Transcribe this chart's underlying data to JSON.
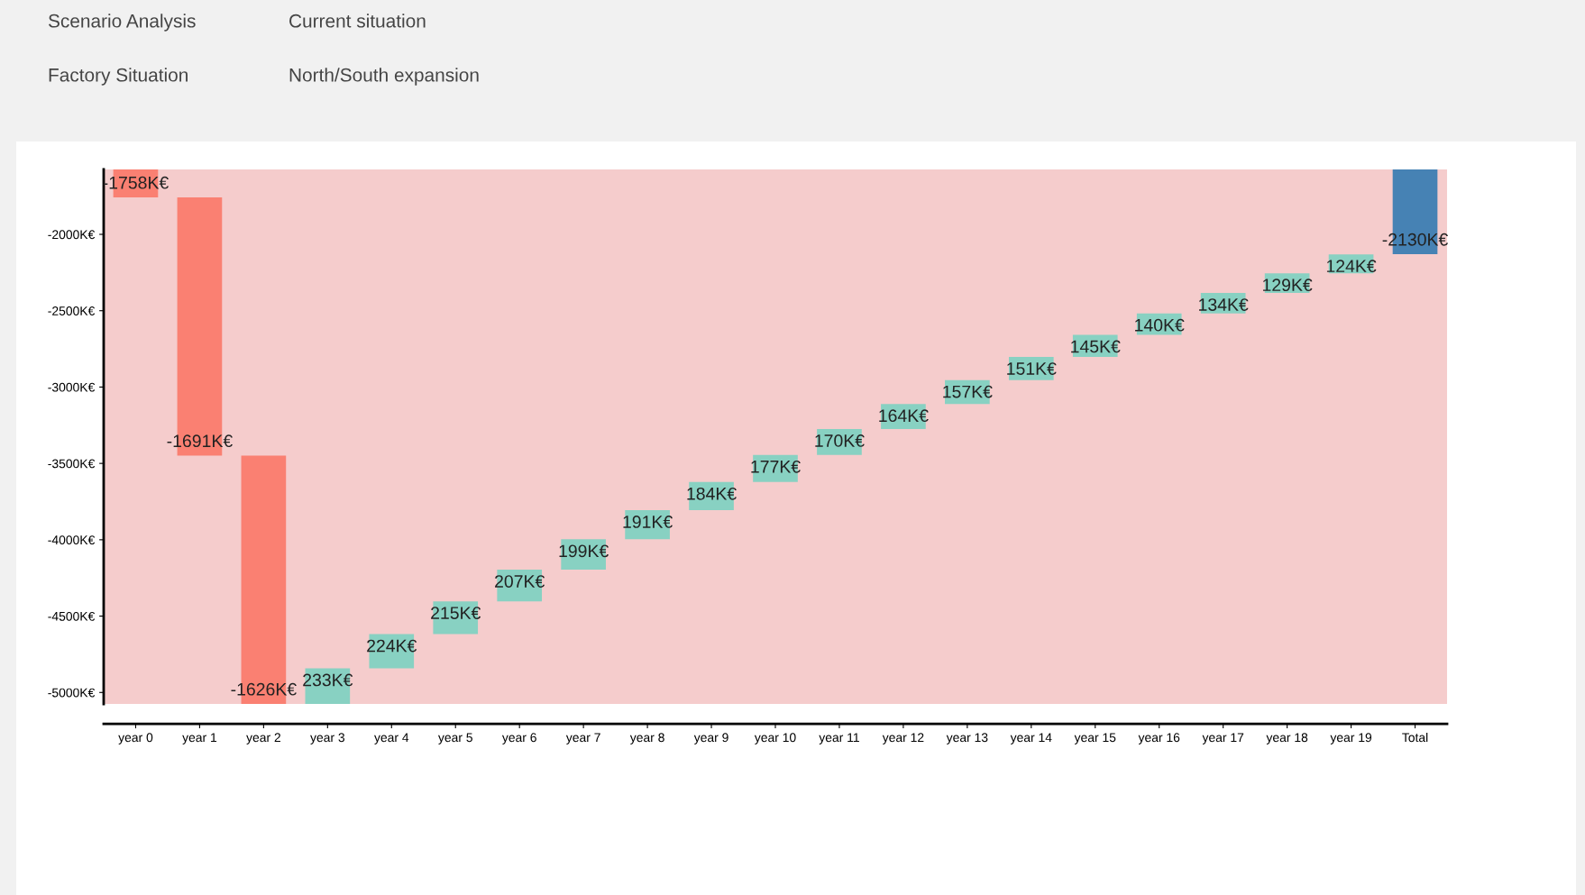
{
  "chart_data": {
    "type": "bar",
    "categories": [
      "year 0",
      "year 1",
      "year 2",
      "year 3",
      "year 4",
      "year 5",
      "year 6",
      "year 7",
      "year 8",
      "year 9",
      "year 10",
      "year 11",
      "year 12",
      "year 13",
      "year 14",
      "year 15",
      "year 16",
      "year 17",
      "year 18",
      "year 19",
      "Total"
    ],
    "values": [
      -1758,
      -1691,
      -1626,
      233,
      224,
      215,
      207,
      199,
      191,
      184,
      177,
      170,
      164,
      157,
      151,
      145,
      140,
      134,
      129,
      124,
      -2130
    ],
    "base": [
      0,
      -1758,
      -3449,
      -5075,
      -4842,
      -4618,
      -4403,
      -4196,
      -3997,
      -3806,
      -3622,
      -3445,
      -3275,
      -3111,
      -2954,
      -2803,
      -2658,
      -2518,
      -2384,
      -2255,
      0
    ],
    "colors": [
      "#fa8072",
      "#fa8072",
      "#fa8072",
      "#88d1c2",
      "#88d1c2",
      "#88d1c2",
      "#88d1c2",
      "#88d1c2",
      "#88d1c2",
      "#88d1c2",
      "#88d1c2",
      "#88d1c2",
      "#88d1c2",
      "#88d1c2",
      "#88d1c2",
      "#88d1c2",
      "#88d1c2",
      "#88d1c2",
      "#88d1c2",
      "#88d1c2",
      "#4682b4"
    ],
    "value_labels": [
      "-1758K€",
      "-1691K€",
      "-1626K€",
      "233K€",
      "224K€",
      "215K€",
      "207K€",
      "199K€",
      "191K€",
      "184K€",
      "177K€",
      "170K€",
      "164K€",
      "157K€",
      "151K€",
      "145K€",
      "140K€",
      "134K€",
      "129K€",
      "124K€",
      "-2130K€"
    ],
    "ylim": [
      -5075,
      -1575
    ],
    "yticks": [
      {
        "value": -5000,
        "label": "-5000K€"
      },
      {
        "value": -4500,
        "label": "-4500K€"
      },
      {
        "value": -4000,
        "label": "-4000K€"
      },
      {
        "value": -3500,
        "label": "-3500K€"
      },
      {
        "value": -3000,
        "label": "-3000K€"
      },
      {
        "value": -2500,
        "label": "-2500K€"
      },
      {
        "value": -2000,
        "label": "-2000K€"
      }
    ],
    "annotations": [
      "Scenario Analysis",
      "Current situation",
      "Factory Situation",
      "North/South expansion"
    ],
    "grid": false,
    "legend": false
  }
}
